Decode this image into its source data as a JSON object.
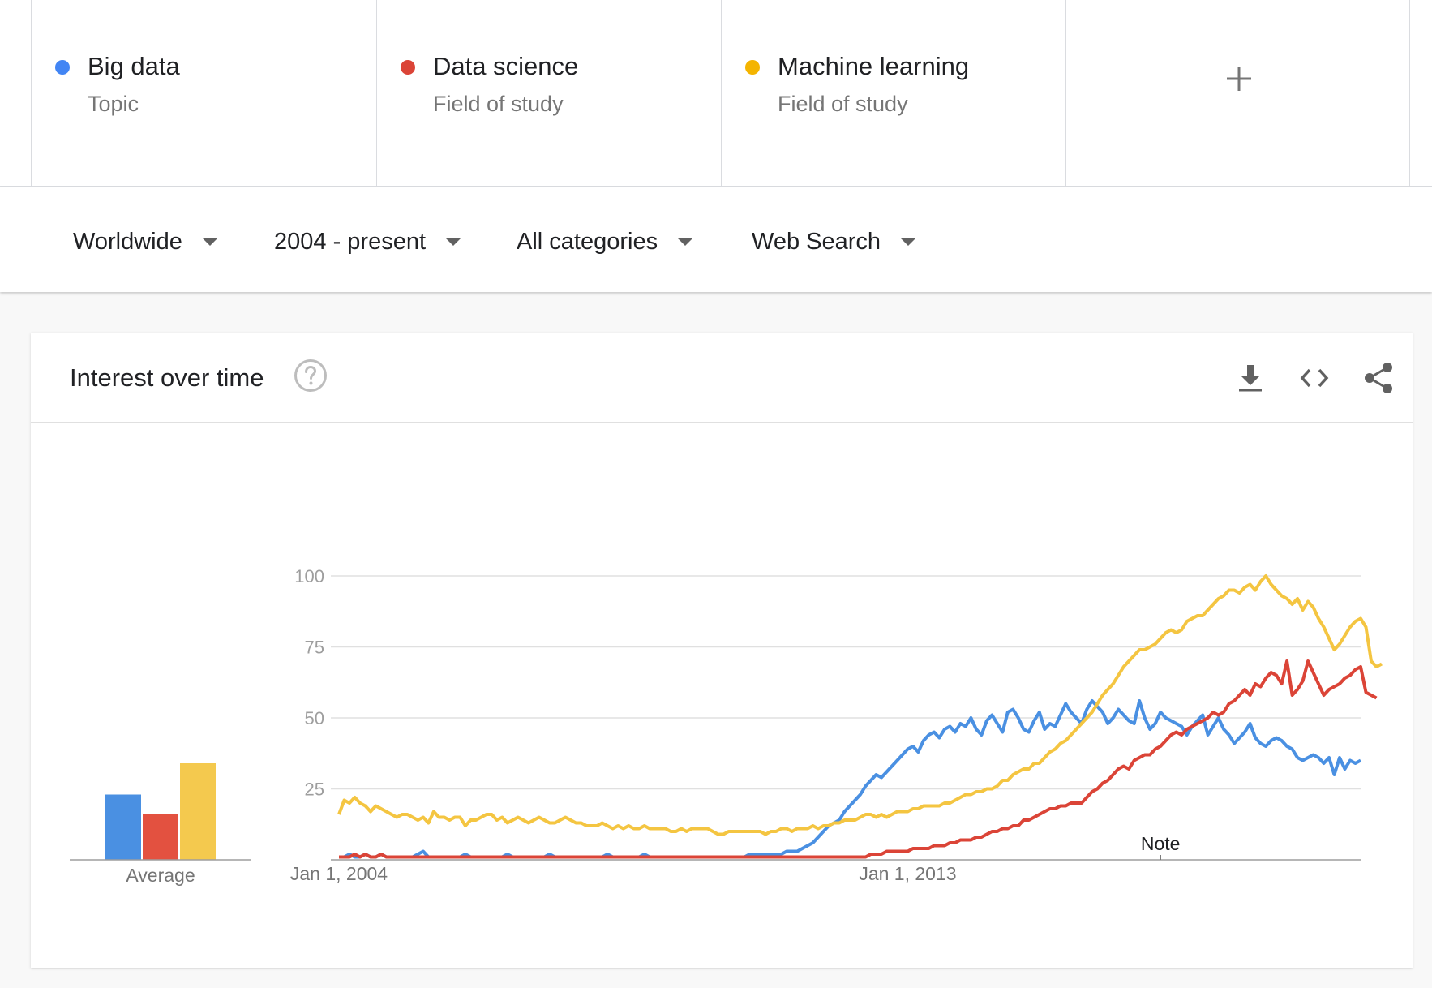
{
  "terms": [
    {
      "name": "Big data",
      "kind": "Topic",
      "color": "#4285f4"
    },
    {
      "name": "Data science",
      "kind": "Field of study",
      "color": "#db4437"
    },
    {
      "name": "Machine learning",
      "kind": "Field of study",
      "color": "#f4b400"
    }
  ],
  "add_term_icon": "plus-icon",
  "filters": {
    "region": "Worldwide",
    "time": "2004 - present",
    "category": "All categories",
    "search_type": "Web Search"
  },
  "card": {
    "title": "Interest over time",
    "icons": [
      "help-icon",
      "download-icon",
      "embed-code-icon",
      "share-icon"
    ]
  },
  "chart_data": {
    "type": "line",
    "x_start": "Jan 1, 2004",
    "x_end": "2018",
    "x_ticks": [
      {
        "label": "Jan 1, 2004",
        "year": 2004
      },
      {
        "label": "Jan 1, 2013",
        "year": 2013
      }
    ],
    "note": {
      "label": "Note",
      "year": 2017
    },
    "ylim": [
      0,
      100
    ],
    "y_ticks": [
      25,
      50,
      75,
      100
    ],
    "grid": true,
    "average_label": "Average",
    "averages": [
      {
        "name": "Big data",
        "value": 23,
        "color": "#4a90e2"
      },
      {
        "name": "Data science",
        "value": 16,
        "color": "#e35140"
      },
      {
        "name": "Machine learning",
        "value": 34,
        "color": "#f4c94e"
      }
    ],
    "series": [
      {
        "name": "Big data",
        "color": "#4a90e2",
        "values": [
          1,
          1,
          2,
          1,
          1,
          2,
          1,
          1,
          2,
          1,
          1,
          1,
          1,
          1,
          1,
          2,
          3,
          1,
          1,
          1,
          1,
          1,
          1,
          1,
          2,
          1,
          1,
          1,
          1,
          1,
          1,
          1,
          2,
          1,
          1,
          1,
          1,
          1,
          1,
          1,
          2,
          1,
          1,
          1,
          1,
          1,
          1,
          1,
          1,
          1,
          1,
          2,
          1,
          1,
          1,
          1,
          1,
          1,
          2,
          1,
          1,
          1,
          1,
          1,
          1,
          1,
          1,
          1,
          1,
          1,
          1,
          1,
          1,
          1,
          1,
          1,
          1,
          1,
          2,
          2,
          2,
          2,
          2,
          2,
          2,
          3,
          3,
          3,
          4,
          5,
          6,
          8,
          10,
          12,
          13,
          14,
          17,
          19,
          21,
          23,
          26,
          28,
          30,
          29,
          31,
          33,
          35,
          37,
          39,
          40,
          38,
          42,
          44,
          45,
          43,
          46,
          47,
          45,
          48,
          47,
          50,
          46,
          44,
          49,
          51,
          48,
          45,
          52,
          53,
          50,
          46,
          45,
          49,
          52,
          46,
          48,
          47,
          51,
          55,
          52,
          50,
          48,
          53,
          56,
          54,
          52,
          48,
          50,
          53,
          51,
          49,
          48,
          56,
          50,
          46,
          48,
          52,
          50,
          49,
          48,
          47,
          44,
          47,
          49,
          51,
          44,
          47,
          50,
          46,
          44,
          41,
          43,
          45,
          48,
          43,
          41,
          40,
          42,
          43,
          42,
          40,
          39,
          36,
          35,
          36,
          37,
          36,
          34,
          36,
          30,
          36,
          32,
          35,
          34,
          35
        ]
      },
      {
        "name": "Data science",
        "color": "#db4437",
        "values": [
          1,
          1,
          1,
          2,
          1,
          2,
          1,
          1,
          2,
          1,
          1,
          1,
          1,
          1,
          1,
          1,
          1,
          1,
          1,
          1,
          1,
          1,
          1,
          1,
          1,
          1,
          1,
          1,
          1,
          1,
          1,
          1,
          1,
          1,
          1,
          1,
          1,
          1,
          1,
          1,
          1,
          1,
          1,
          1,
          1,
          1,
          1,
          1,
          1,
          1,
          1,
          1,
          1,
          1,
          1,
          1,
          1,
          1,
          1,
          1,
          1,
          1,
          1,
          1,
          1,
          1,
          1,
          1,
          1,
          1,
          1,
          1,
          1,
          1,
          1,
          1,
          1,
          1,
          1,
          1,
          1,
          1,
          1,
          1,
          1,
          1,
          1,
          1,
          1,
          1,
          1,
          1,
          1,
          1,
          1,
          1,
          1,
          1,
          1,
          1,
          1,
          2,
          2,
          2,
          3,
          3,
          3,
          3,
          3,
          4,
          4,
          4,
          4,
          5,
          5,
          5,
          6,
          6,
          7,
          7,
          7,
          8,
          8,
          9,
          10,
          10,
          11,
          11,
          12,
          12,
          14,
          14,
          15,
          16,
          17,
          18,
          18,
          19,
          19,
          20,
          20,
          20,
          22,
          24,
          25,
          27,
          28,
          30,
          32,
          33,
          32,
          35,
          36,
          37,
          37,
          39,
          40,
          42,
          44,
          45,
          44,
          46,
          47,
          48,
          49,
          50,
          52,
          51,
          52,
          55,
          56,
          58,
          60,
          58,
          62,
          61,
          64,
          66,
          65,
          62,
          70,
          58,
          60,
          63,
          70,
          66,
          62,
          58,
          60,
          61,
          62,
          64,
          65,
          67,
          68,
          59,
          58,
          57
        ]
      },
      {
        "name": "Machine learning",
        "color": "#f4c541",
        "values": [
          16,
          21,
          20,
          22,
          20,
          19,
          17,
          19,
          18,
          17,
          16,
          15,
          16,
          16,
          15,
          14,
          15,
          13,
          17,
          15,
          15,
          14,
          15,
          15,
          12,
          14,
          14,
          15,
          16,
          16,
          14,
          15,
          13,
          14,
          15,
          14,
          13,
          14,
          15,
          14,
          13,
          13,
          14,
          15,
          14,
          13,
          13,
          12,
          12,
          12,
          13,
          12,
          11,
          12,
          11,
          12,
          11,
          11,
          12,
          11,
          11,
          11,
          11,
          10,
          10,
          11,
          10,
          11,
          11,
          11,
          11,
          10,
          9,
          9,
          10,
          10,
          10,
          10,
          10,
          10,
          10,
          9,
          10,
          10,
          11,
          11,
          10,
          11,
          11,
          11,
          12,
          11,
          12,
          12,
          13,
          13,
          14,
          14,
          14,
          15,
          16,
          16,
          15,
          16,
          15,
          16,
          17,
          17,
          17,
          18,
          18,
          19,
          19,
          19,
          19,
          20,
          20,
          21,
          22,
          23,
          23,
          24,
          24,
          25,
          25,
          26,
          28,
          28,
          30,
          31,
          32,
          32,
          34,
          34,
          36,
          38,
          39,
          41,
          42,
          44,
          46,
          48,
          50,
          52,
          55,
          58,
          60,
          62,
          65,
          68,
          70,
          72,
          74,
          74,
          75,
          76,
          78,
          80,
          81,
          80,
          81,
          84,
          85,
          86,
          86,
          88,
          90,
          92,
          93,
          95,
          95,
          94,
          96,
          97,
          95,
          98,
          100,
          97,
          95,
          93,
          92,
          90,
          92,
          88,
          91,
          89,
          85,
          82,
          78,
          74,
          76,
          79,
          82,
          84,
          85,
          82,
          70,
          68,
          69
        ]
      }
    ]
  }
}
